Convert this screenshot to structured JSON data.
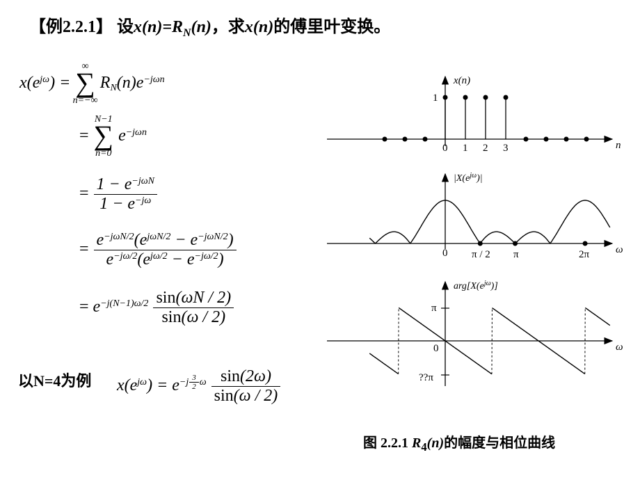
{
  "title": {
    "example_label": "【例2.2.1】",
    "premise_prefix": "设",
    "premise_math": "x(n)=R",
    "premise_sub": "N",
    "premise_math2": "(n)",
    "premise_sep": "，",
    "goal_prefix": "求",
    "goal_math": "x(n)",
    "goal_suffix": "的傅里叶变换。"
  },
  "equations": {
    "lhs": "x(e",
    "lhs_sup": "jω",
    "lhs_close": ") =",
    "line1": {
      "sum_lower": "n=−∞",
      "sum_upper": "∞",
      "body": "R",
      "body_sub": "N",
      "body2": "(n)e",
      "body2_sup": "−jωn"
    },
    "line2": {
      "eq": "=",
      "sum_lower": "n=0",
      "sum_upper": "N−1",
      "body": "e",
      "body_sup": "−jωn"
    },
    "line3": {
      "eq": "=",
      "num": "1 − e",
      "num_sup": "−jωN",
      "den": "1 − e",
      "den_sup": "−jω"
    },
    "line4": {
      "eq": "=",
      "num_a": "e",
      "num_a_sup": "−jωN/2",
      "num_b": "(e",
      "num_b_sup": "jωN/2",
      "num_c": " − e",
      "num_c_sup": "−jωN/2",
      "num_d": ")",
      "den_a": "e",
      "den_a_sup": "−jω/2",
      "den_b": "(e",
      "den_b_sup": "jω/2",
      "den_c": " − e",
      "den_c_sup": "−jω/2",
      "den_d": ")"
    },
    "line5": {
      "eq": "=",
      "pref": "e",
      "pref_sup": "−j(N−1)ω/2",
      "num": "sin(ωN / 2)",
      "den": "sin(ω / 2)"
    },
    "example_N": {
      "label": "以N=4为例",
      "lhs": "x(e",
      "lhs_sup": "jω",
      "lhs_close": ") = e",
      "exp_prefix": "−j",
      "exp_frac_num": "3",
      "exp_frac_den": "2",
      "exp_suffix": "ω",
      "num": "sin(2ω)",
      "den": "sin(ω / 2)"
    }
  },
  "plots": {
    "top": {
      "ylabel": "x(n)",
      "xlabel": "n",
      "axis_color": "#000000",
      "stem": {
        "color": "#000000",
        "dot_r": 3.5,
        "linewidth": 1.3
      },
      "xlim": [
        -3.5,
        8.5
      ],
      "ylim": [
        0,
        1.2
      ],
      "xtick_labels": [
        "0",
        "1",
        "2",
        "3"
      ],
      "xtick_pos": [
        0,
        1,
        2,
        3
      ],
      "ytick_labels": [
        "1"
      ],
      "ytick_pos": [
        1
      ],
      "x": [
        -3,
        -2,
        -1,
        0,
        1,
        2,
        3,
        4,
        5,
        6,
        7,
        8
      ],
      "y": [
        0,
        0,
        0,
        1,
        1,
        1,
        1,
        0,
        0,
        0,
        0,
        0
      ]
    },
    "mid": {
      "ylabel": "|X(e^{jω})|",
      "xlabel": "ω",
      "axis_color": "#000000",
      "curve_color": "#000000",
      "linewidth": 1.3,
      "xlim": [
        -3.5,
        7.5
      ],
      "xtick_labels": [
        "0",
        "π/2",
        "π",
        "2π"
      ],
      "xtick_pos": [
        0,
        1.5708,
        3.1416,
        6.2832
      ],
      "zero_dot_r": 3.5,
      "zero_dots_x": [
        1.5708,
        3.1416,
        6.2832
      ]
    },
    "bot": {
      "ylabel": "arg[X(e^{jω})]",
      "xlabel": "ω",
      "axis_color": "#000000",
      "curve_color": "#000000",
      "dash_color": "#000000",
      "linewidth": 1.3,
      "xlim": [
        -3.5,
        7.5
      ],
      "ylim": [
        -3.1416,
        3.1416
      ],
      "ytick_labels": [
        "π",
        "??π"
      ],
      "ytick_pos": [
        3.1416,
        -3.1416
      ],
      "xtick_labels": [
        "0"
      ],
      "xtick_pos": [
        0
      ]
    }
  },
  "caption": {
    "label": "图 2.2.1  ",
    "math": "R",
    "math_sub": "4",
    "math2": "(n)",
    "suffix": "的幅度与相位曲线"
  },
  "colors": {
    "text": "#000000",
    "background": "#ffffff"
  }
}
